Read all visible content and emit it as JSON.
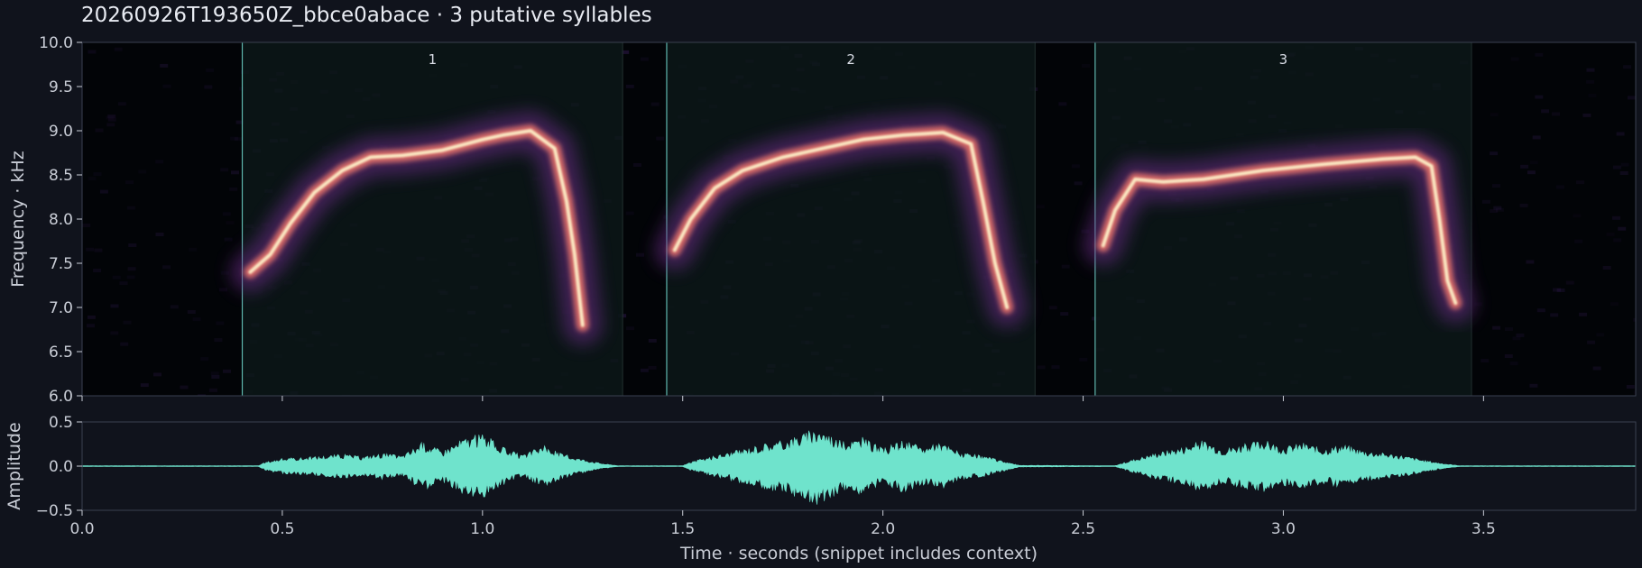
{
  "title": "20260926T193650Z_bbce0abace · 3 putative syllables",
  "colors": {
    "background": "#10131c",
    "axes_edge": "#3a4050",
    "text": "#c9cdd6",
    "waveform": "#6fe3cc",
    "segment_line": "#5fb7ae",
    "ridge_hot": "#fdf0c8",
    "ridge_mid": "#e8736a",
    "ridge_low": "#6a2a86"
  },
  "chart_data": [
    {
      "type": "heatmap",
      "name": "spectrogram",
      "ylabel": "Frequency · kHz",
      "xlim": [
        0.0,
        3.88
      ],
      "ylim": [
        6.0,
        10.0
      ],
      "yticks": [
        "6.0",
        "6.5",
        "7.0",
        "7.5",
        "8.0",
        "8.5",
        "9.0",
        "9.5",
        "10.0"
      ],
      "ytick_values": [
        6.0,
        6.5,
        7.0,
        7.5,
        8.0,
        8.5,
        9.0,
        9.5,
        10.0
      ],
      "colormap": "magma",
      "segments": [
        {
          "label": "1",
          "start": 0.4,
          "end": 1.35
        },
        {
          "label": "2",
          "start": 1.46,
          "end": 2.38
        },
        {
          "label": "3",
          "start": 2.53,
          "end": 3.47
        }
      ],
      "ridges": [
        {
          "syllable": "1",
          "points": [
            [
              0.42,
              7.4
            ],
            [
              0.47,
              7.6
            ],
            [
              0.52,
              7.95
            ],
            [
              0.58,
              8.3
            ],
            [
              0.65,
              8.55
            ],
            [
              0.72,
              8.7
            ],
            [
              0.8,
              8.72
            ],
            [
              0.9,
              8.78
            ],
            [
              1.0,
              8.9
            ],
            [
              1.05,
              8.95
            ],
            [
              1.12,
              9.0
            ],
            [
              1.18,
              8.8
            ],
            [
              1.21,
              8.2
            ],
            [
              1.23,
              7.6
            ],
            [
              1.25,
              6.8
            ]
          ]
        },
        {
          "syllable": "2",
          "points": [
            [
              1.48,
              7.65
            ],
            [
              1.52,
              8.0
            ],
            [
              1.58,
              8.35
            ],
            [
              1.65,
              8.55
            ],
            [
              1.75,
              8.7
            ],
            [
              1.85,
              8.8
            ],
            [
              1.95,
              8.9
            ],
            [
              2.05,
              8.95
            ],
            [
              2.15,
              8.98
            ],
            [
              2.22,
              8.85
            ],
            [
              2.25,
              8.2
            ],
            [
              2.28,
              7.5
            ],
            [
              2.31,
              7.0
            ]
          ]
        },
        {
          "syllable": "3",
          "points": [
            [
              2.55,
              7.7
            ],
            [
              2.58,
              8.1
            ],
            [
              2.63,
              8.45
            ],
            [
              2.7,
              8.42
            ],
            [
              2.8,
              8.45
            ],
            [
              2.95,
              8.55
            ],
            [
              3.1,
              8.62
            ],
            [
              3.25,
              8.68
            ],
            [
              3.33,
              8.7
            ],
            [
              3.37,
              8.6
            ],
            [
              3.39,
              8.0
            ],
            [
              3.41,
              7.3
            ],
            [
              3.43,
              7.05
            ]
          ]
        }
      ]
    },
    {
      "type": "area",
      "name": "waveform",
      "ylabel": "Amplitude",
      "xlabel": "Time · seconds (snippet includes context)",
      "xlim": [
        0.0,
        3.88
      ],
      "ylim": [
        -0.5,
        0.5
      ],
      "xticks": [
        "0.0",
        "0.5",
        "1.0",
        "1.5",
        "2.0",
        "2.5",
        "3.0",
        "3.5"
      ],
      "xtick_values": [
        0.0,
        0.5,
        1.0,
        1.5,
        2.0,
        2.5,
        3.0,
        3.5
      ],
      "yticks": [
        "−0.5",
        "0.0",
        "0.5"
      ],
      "ytick_values": [
        -0.5,
        0.0,
        0.5
      ],
      "envelope": [
        [
          0.0,
          0.005
        ],
        [
          0.44,
          0.005
        ],
        [
          0.46,
          0.05
        ],
        [
          0.5,
          0.09
        ],
        [
          0.55,
          0.1
        ],
        [
          0.6,
          0.12
        ],
        [
          0.65,
          0.14
        ],
        [
          0.7,
          0.11
        ],
        [
          0.75,
          0.15
        ],
        [
          0.8,
          0.12
        ],
        [
          0.85,
          0.28
        ],
        [
          0.9,
          0.18
        ],
        [
          0.95,
          0.32
        ],
        [
          1.0,
          0.38
        ],
        [
          1.05,
          0.22
        ],
        [
          1.1,
          0.12
        ],
        [
          1.15,
          0.24
        ],
        [
          1.2,
          0.14
        ],
        [
          1.25,
          0.08
        ],
        [
          1.3,
          0.03
        ],
        [
          1.34,
          0.005
        ],
        [
          1.5,
          0.005
        ],
        [
          1.52,
          0.05
        ],
        [
          1.58,
          0.12
        ],
        [
          1.65,
          0.2
        ],
        [
          1.7,
          0.26
        ],
        [
          1.75,
          0.3
        ],
        [
          1.8,
          0.38
        ],
        [
          1.84,
          0.45
        ],
        [
          1.9,
          0.28
        ],
        [
          1.95,
          0.33
        ],
        [
          2.0,
          0.2
        ],
        [
          2.05,
          0.3
        ],
        [
          2.1,
          0.22
        ],
        [
          2.15,
          0.26
        ],
        [
          2.2,
          0.15
        ],
        [
          2.25,
          0.12
        ],
        [
          2.3,
          0.06
        ],
        [
          2.34,
          0.01
        ],
        [
          2.58,
          0.005
        ],
        [
          2.62,
          0.07
        ],
        [
          2.68,
          0.15
        ],
        [
          2.75,
          0.22
        ],
        [
          2.8,
          0.3
        ],
        [
          2.85,
          0.2
        ],
        [
          2.9,
          0.25
        ],
        [
          2.95,
          0.3
        ],
        [
          3.0,
          0.22
        ],
        [
          3.05,
          0.27
        ],
        [
          3.1,
          0.2
        ],
        [
          3.15,
          0.25
        ],
        [
          3.2,
          0.18
        ],
        [
          3.25,
          0.15
        ],
        [
          3.3,
          0.12
        ],
        [
          3.35,
          0.07
        ],
        [
          3.4,
          0.03
        ],
        [
          3.44,
          0.005
        ],
        [
          3.88,
          0.005
        ]
      ]
    }
  ]
}
